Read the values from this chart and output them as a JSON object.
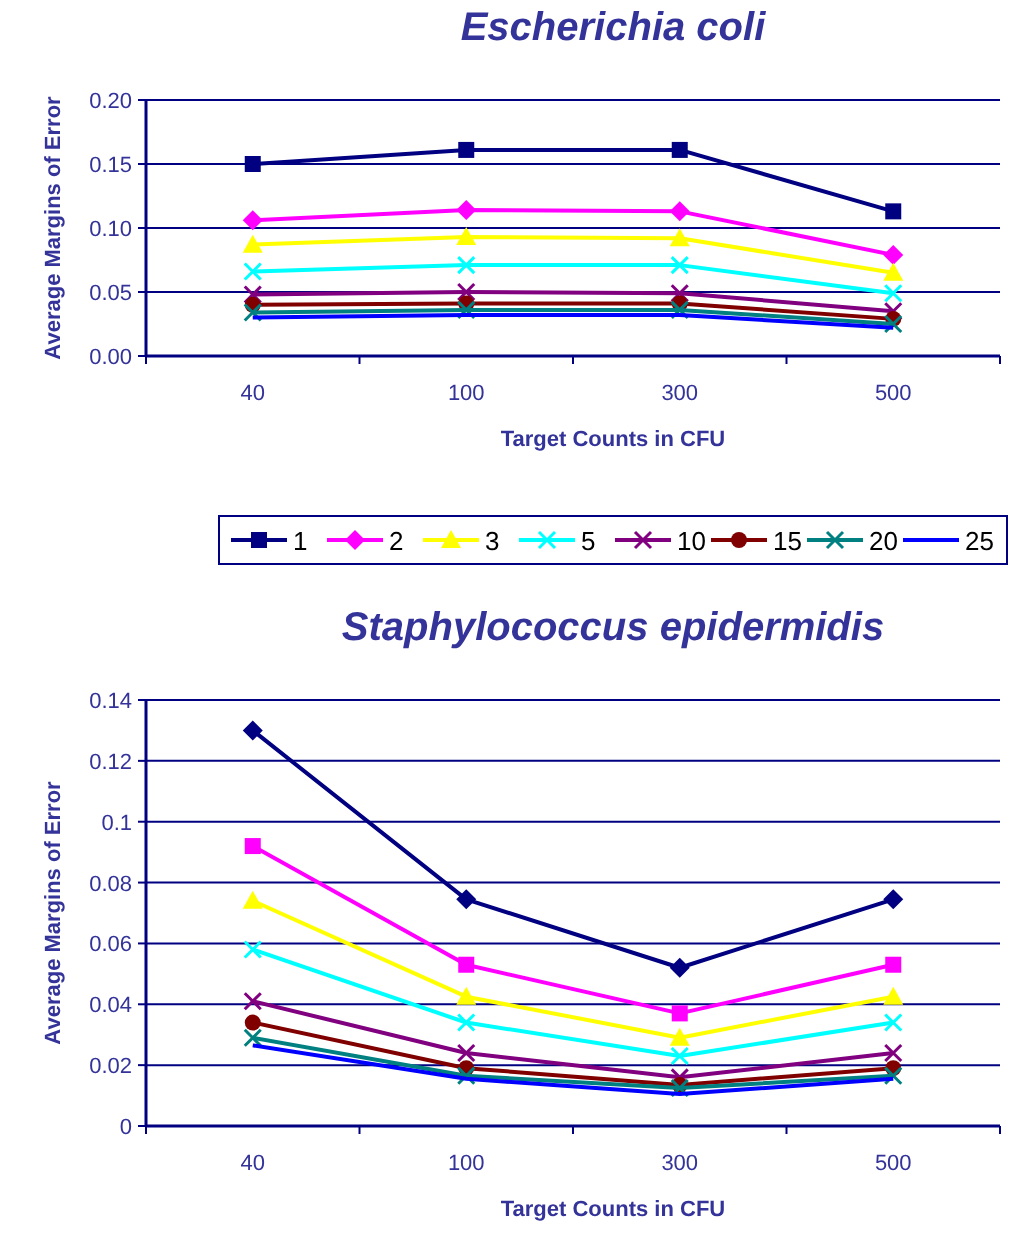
{
  "chart_data": [
    {
      "type": "line",
      "title": "Escherichia coli",
      "xlabel": "Target Counts in CFU",
      "ylabel": "Average Margins of Error",
      "categories": [
        "40",
        "100",
        "300",
        "500"
      ],
      "ylim": [
        0,
        0.2
      ],
      "yticks": [
        {
          "value": 0,
          "label": "0.00"
        },
        {
          "value": 0.05,
          "label": "0.05"
        },
        {
          "value": 0.1,
          "label": "0.10"
        },
        {
          "value": 0.15,
          "label": "0.15"
        },
        {
          "value": 0.2,
          "label": "0.20"
        }
      ],
      "grid": "y",
      "legend": "bottom",
      "series": [
        {
          "name": "1",
          "color": "#000080",
          "marker": "square",
          "values": [
            0.15,
            0.161,
            0.161,
            0.113
          ]
        },
        {
          "name": "2",
          "color": "#ff00ff",
          "marker": "diamond",
          "values": [
            0.106,
            0.114,
            0.113,
            0.079
          ]
        },
        {
          "name": "3",
          "color": "#ffff00",
          "marker": "triangle",
          "values": [
            0.087,
            0.093,
            0.092,
            0.065
          ]
        },
        {
          "name": "5",
          "color": "#00ffff",
          "marker": "cross",
          "values": [
            0.066,
            0.071,
            0.071,
            0.049
          ]
        },
        {
          "name": "10",
          "color": "#800080",
          "marker": "cross",
          "values": [
            0.048,
            0.05,
            0.049,
            0.035
          ]
        },
        {
          "name": "15",
          "color": "#800000",
          "marker": "circle",
          "values": [
            0.04,
            0.041,
            0.041,
            0.029
          ]
        },
        {
          "name": "20",
          "color": "#008080",
          "marker": "cross",
          "values": [
            0.034,
            0.036,
            0.036,
            0.025
          ]
        },
        {
          "name": "25",
          "color": "#0000ff",
          "marker": "none",
          "values": [
            0.03,
            0.032,
            0.032,
            0.022
          ]
        }
      ]
    },
    {
      "type": "line",
      "title": "Staphylococcus epidermidis",
      "xlabel": "Target Counts in CFU",
      "ylabel": "Average Margins of Error",
      "categories": [
        "40",
        "100",
        "300",
        "500"
      ],
      "ylim": [
        0,
        0.14
      ],
      "yticks": [
        0,
        0.02,
        0.04,
        0.06,
        0.08,
        0.1,
        0.12,
        0.14
      ],
      "grid": "y",
      "series": [
        {
          "color": "#000080",
          "marker": "diamond",
          "values": [
            0.13,
            0.0745,
            0.052,
            0.0745
          ]
        },
        {
          "color": "#ff00ff",
          "marker": "square",
          "values": [
            0.092,
            0.053,
            0.037,
            0.053
          ]
        },
        {
          "color": "#ffff00",
          "marker": "triangle",
          "values": [
            0.074,
            0.0425,
            0.029,
            0.0425
          ]
        },
        {
          "color": "#00ffff",
          "marker": "cross",
          "values": [
            0.058,
            0.034,
            0.023,
            0.034
          ]
        },
        {
          "color": "#800080",
          "marker": "cross",
          "values": [
            0.041,
            0.024,
            0.016,
            0.024
          ]
        },
        {
          "color": "#800000",
          "marker": "circle",
          "values": [
            0.034,
            0.019,
            0.0135,
            0.019
          ]
        },
        {
          "color": "#008080",
          "marker": "cross",
          "values": [
            0.029,
            0.0165,
            0.0125,
            0.0165
          ]
        },
        {
          "color": "#0000ff",
          "marker": "none",
          "values": [
            0.0265,
            0.0155,
            0.0105,
            0.0155
          ]
        }
      ]
    }
  ]
}
